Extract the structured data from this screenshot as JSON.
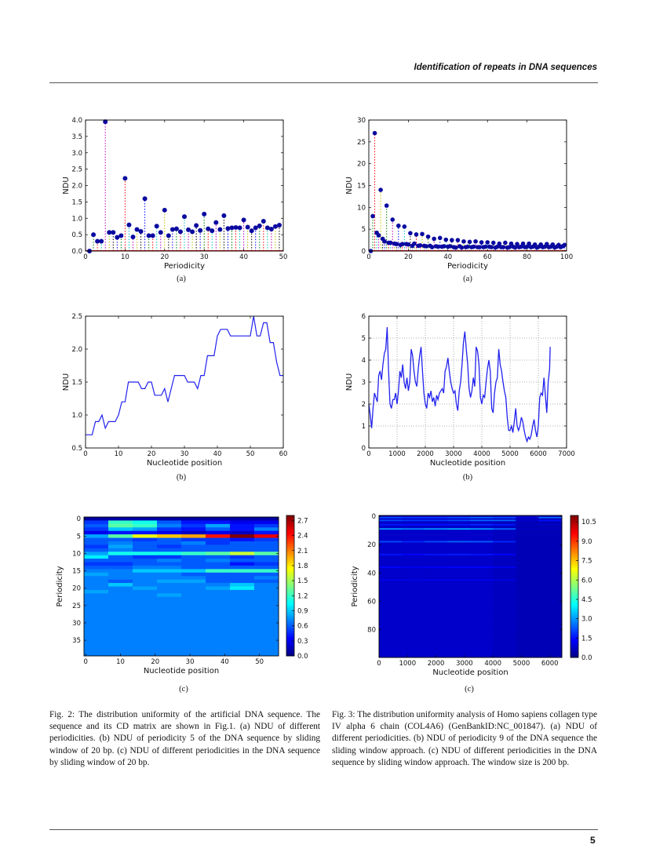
{
  "header": {
    "running_title": "Identification of repeats in DNA sequences",
    "page_number": "5"
  },
  "subfigure_labels": {
    "a": "(a)",
    "b": "(b)",
    "c": "(c)"
  },
  "captions": {
    "fig2": "Fig. 2: The distribution uniformity of the artificial DNA sequence. The sequence and its CD matrix are shown in Fig.1. (a) NDU of different periodicities. (b) NDU of periodicity 5 of the DNA sequence by sliding window of 20 bp. (c) NDU of different periodicities in the DNA sequence by sliding window of 20 bp.",
    "fig3": "Fig. 3: The distribution uniformity analysis of Homo sapiens collagen type IV alpha 6 chain (COL4A6) (GenBankID:NC_001847). (a) NDU of different periodicities. (b) NDU of periodicity 9 of the DNA sequence the sliding window approach. (c) NDU of different periodicities in the DNA sequence by sliding window approach. The window size is 200 bp."
  },
  "colors": {
    "marker": "#0a0aa0",
    "line": "#2222ee",
    "stem_cycle": [
      "#0000ff",
      "#008000",
      "#ff0000",
      "#00bfbf",
      "#bf00bf",
      "#bfbf00",
      "#000000"
    ]
  },
  "chart_data": [
    {
      "id": "fig2a",
      "type": "scatter",
      "style": "stem",
      "xlabel": "Periodicity",
      "ylabel": "NDU",
      "xlim": [
        0,
        50
      ],
      "ylim": [
        0,
        4.0
      ],
      "grid": false,
      "xticks": [
        0,
        10,
        20,
        30,
        40,
        50
      ],
      "xtick_labels": [
        "0",
        "10",
        "20",
        "30",
        "40",
        "50"
      ],
      "yticks": [
        0,
        0.5,
        1,
        1.5,
        2,
        2.5,
        3,
        3.5,
        4
      ],
      "ytick_labels": [
        "0.0",
        "0.5",
        "1.0",
        "1.5",
        "2.0",
        "2.5",
        "3.0",
        "3.5",
        "4.0"
      ],
      "x_start": 1,
      "y": [
        0,
        0.5,
        0.3,
        0.3,
        3.95,
        0.57,
        0.57,
        0.42,
        0.47,
        2.22,
        0.8,
        0.43,
        0.66,
        0.6,
        1.6,
        0.47,
        0.47,
        0.76,
        0.57,
        1.25,
        0.47,
        0.66,
        0.68,
        0.59,
        1.05,
        0.65,
        0.59,
        0.78,
        0.63,
        1.13,
        0.68,
        0.62,
        0.87,
        0.66,
        1.08,
        0.69,
        0.71,
        0.72,
        0.71,
        0.95,
        0.73,
        0.62,
        0.71,
        0.77,
        0.91,
        0.71,
        0.67,
        0.75,
        0.79
      ]
    },
    {
      "id": "fig3a",
      "type": "scatter",
      "style": "stem",
      "xlabel": "Periodicity",
      "ylabel": "NDU",
      "xlim": [
        0,
        100
      ],
      "ylim": [
        0,
        30
      ],
      "grid": false,
      "xticks": [
        0,
        20,
        40,
        60,
        80,
        100
      ],
      "xtick_labels": [
        "0",
        "20",
        "40",
        "60",
        "80",
        "100"
      ],
      "yticks": [
        0,
        5,
        10,
        15,
        20,
        25,
        30
      ],
      "ytick_labels": [
        "0",
        "5",
        "10",
        "15",
        "20",
        "25",
        "30"
      ],
      "x_start": 1,
      "y": [
        0,
        8,
        27,
        4.2,
        3.6,
        14,
        2.8,
        2.2,
        10.4,
        1.9,
        1.9,
        7.2,
        1.7,
        1.6,
        5.8,
        1.4,
        1.6,
        5.6,
        1.6,
        1.5,
        4.1,
        1.2,
        1.7,
        3.8,
        1.2,
        1.3,
        3.9,
        1.2,
        1.1,
        3.3,
        1.2,
        0.9,
        2.8,
        1.1,
        1.0,
        3.0,
        1.0,
        1.1,
        2.6,
        1.0,
        1.1,
        2.5,
        0.9,
        0.8,
        2.5,
        1.1,
        0.8,
        2.2,
        0.9,
        1.0,
        2.1,
        0.9,
        1.0,
        2.2,
        0.9,
        0.9,
        2.0,
        0.9,
        1.0,
        2.0,
        1.0,
        0.9,
        1.9,
        0.8,
        1.0,
        1.7,
        0.9,
        0.9,
        1.9,
        0.8,
        0.9,
        1.7,
        1.0,
        0.8,
        1.6,
        0.9,
        1.0,
        1.7,
        0.9,
        1.0,
        1.7,
        0.9,
        1.0,
        1.5,
        0.8,
        1.0,
        1.5,
        0.9,
        1.0,
        1.6,
        0.9,
        1.0,
        1.5,
        0.8,
        1.0,
        1.4,
        0.9,
        1.1,
        1.4
      ]
    },
    {
      "id": "fig2b",
      "type": "line",
      "xlabel": "Nucleotide position",
      "ylabel": "NDU",
      "xlim": [
        0,
        60
      ],
      "ylim": [
        0.5,
        2.5
      ],
      "grid": false,
      "xticks": [
        0,
        10,
        20,
        30,
        40,
        50,
        60
      ],
      "xtick_labels": [
        "0",
        "10",
        "20",
        "30",
        "40",
        "50",
        "60"
      ],
      "yticks": [
        0.5,
        1,
        1.5,
        2,
        2.5
      ],
      "ytick_labels": [
        "0.5",
        "1.0",
        "1.5",
        "2.0",
        "2.5"
      ],
      "x_start": 0,
      "y": [
        0.7,
        0.7,
        0.7,
        0.9,
        0.9,
        1.0,
        0.8,
        0.9,
        0.9,
        0.9,
        1.0,
        1.2,
        1.2,
        1.5,
        1.5,
        1.5,
        1.5,
        1.4,
        1.4,
        1.5,
        1.5,
        1.3,
        1.3,
        1.3,
        1.4,
        1.2,
        1.4,
        1.6,
        1.6,
        1.6,
        1.6,
        1.5,
        1.5,
        1.5,
        1.4,
        1.6,
        1.6,
        1.9,
        1.9,
        1.9,
        2.2,
        2.3,
        2.3,
        2.3,
        2.2,
        2.2,
        2.2,
        2.2,
        2.2,
        2.2,
        2.2,
        2.5,
        2.2,
        2.2,
        2.4,
        2.4,
        2.1,
        2.1,
        1.8,
        1.6,
        1.6
      ]
    },
    {
      "id": "fig3b",
      "type": "line",
      "xlabel": "Nucleotide position",
      "ylabel": "NDU",
      "xlim": [
        0,
        7000
      ],
      "ylim": [
        0,
        6
      ],
      "grid": true,
      "xticks": [
        0,
        1000,
        2000,
        3000,
        4000,
        5000,
        6000,
        7000
      ],
      "xtick_labels": [
        "0",
        "1000",
        "2000",
        "3000",
        "4000",
        "5000",
        "6000",
        "7000"
      ],
      "yticks": [
        0,
        1,
        2,
        3,
        4,
        5,
        6
      ],
      "ytick_labels": [
        "0",
        "1",
        "2",
        "3",
        "4",
        "5",
        "6"
      ],
      "x": [
        0,
        50,
        100,
        150,
        200,
        250,
        300,
        350,
        400,
        450,
        500,
        550,
        600,
        650,
        700,
        750,
        800,
        850,
        900,
        950,
        1000,
        1050,
        1100,
        1150,
        1200,
        1250,
        1300,
        1350,
        1400,
        1450,
        1500,
        1550,
        1600,
        1650,
        1700,
        1750,
        1800,
        1850,
        1900,
        1950,
        2000,
        2050,
        2100,
        2150,
        2200,
        2250,
        2300,
        2350,
        2400,
        2450,
        2500,
        2550,
        2600,
        2650,
        2700,
        2750,
        2800,
        2850,
        2900,
        2950,
        3000,
        3050,
        3100,
        3150,
        3200,
        3250,
        3300,
        3350,
        3400,
        3450,
        3500,
        3550,
        3600,
        3650,
        3700,
        3750,
        3800,
        3850,
        3900,
        3950,
        4000,
        4050,
        4100,
        4150,
        4200,
        4250,
        4300,
        4350,
        4400,
        4450,
        4500,
        4550,
        4600,
        4650,
        4700,
        4750,
        4800,
        4850,
        4900,
        4950,
        5000,
        5050,
        5100,
        5150,
        5200,
        5250,
        5300,
        5350,
        5400,
        5450,
        5500,
        5550,
        5600,
        5650,
        5700,
        5750,
        5800,
        5850,
        5900,
        5950,
        6000,
        6050,
        6100,
        6150,
        6200,
        6250,
        6300,
        6350,
        6400,
        6420
      ],
      "y": [
        2.0,
        1.5,
        0.9,
        1.8,
        2.5,
        2.3,
        2.1,
        3.3,
        3.5,
        3.1,
        3.8,
        4.3,
        4.5,
        5.5,
        3.5,
        2.0,
        1.8,
        2.2,
        2.2,
        2.5,
        2.0,
        2.6,
        3.5,
        3.2,
        3.8,
        3.0,
        2.7,
        3.2,
        2.6,
        3.0,
        4.5,
        4.2,
        3.5,
        3.0,
        2.8,
        3.6,
        4.2,
        4.6,
        3.5,
        2.5,
        2.0,
        1.8,
        2.5,
        2.3,
        2.6,
        2.1,
        2.3,
        1.9,
        2.4,
        2.2,
        2.5,
        2.6,
        2.7,
        2.5,
        3.5,
        3.7,
        4.1,
        3.5,
        3.0,
        2.7,
        2.5,
        2.6,
        2.0,
        1.7,
        2.6,
        3.0,
        3.8,
        4.8,
        5.3,
        4.5,
        3.8,
        2.7,
        2.3,
        2.6,
        3.2,
        2.8,
        4.6,
        4.4,
        3.8,
        2.3,
        2.0,
        2.4,
        2.3,
        3.0,
        3.6,
        4.0,
        3.5,
        1.8,
        1.6,
        2.5,
        3.0,
        3.2,
        4.5,
        3.8,
        3.5,
        3.0,
        2.6,
        2.3,
        1.4,
        0.8,
        0.8,
        1.0,
        0.7,
        1.2,
        1.8,
        1.0,
        0.8,
        1.0,
        1.4,
        1.2,
        0.8,
        0.5,
        0.3,
        0.5,
        0.4,
        0.6,
        1.0,
        1.3,
        0.8,
        0.5,
        1.0,
        2.3,
        2.5,
        2.4,
        3.2,
        2.4,
        1.6,
        3.0,
        3.6,
        4.6
      ]
    },
    {
      "id": "fig2c",
      "type": "heatmap",
      "colormap": "jet",
      "xlabel": "Nucleotide position",
      "ylabel": "Periodicity",
      "xlim": [
        -0.5,
        55.5
      ],
      "ylim": [
        -0.5,
        39.5
      ],
      "xticks": [
        0,
        10,
        20,
        30,
        40,
        50
      ],
      "xtick_labels": [
        "0",
        "10",
        "20",
        "30",
        "40",
        "50"
      ],
      "yticks": [
        0,
        5,
        10,
        15,
        20,
        25,
        30,
        35
      ],
      "ytick_labels": [
        "0",
        "5",
        "10",
        "15",
        "20",
        "25",
        "30",
        "35"
      ],
      "column_bins": [
        [
          -0.5,
          6.5
        ],
        [
          6.5,
          13.5
        ],
        [
          13.5,
          20.5
        ],
        [
          20.5,
          27.5
        ],
        [
          27.5,
          34.5
        ],
        [
          34.5,
          41.5
        ],
        [
          41.5,
          48.5
        ],
        [
          48.5,
          55.5
        ]
      ],
      "default_row": [
        0.7,
        0.7,
        0.7,
        0.7,
        0.7,
        0.7,
        0.7,
        0.7
      ],
      "rows": {
        "0": [
          0.1,
          0.1,
          0.1,
          0.1,
          0.1,
          0.1,
          0.1,
          0.1
        ],
        "1": [
          0.5,
          1.2,
          1.1,
          0.6,
          0.4,
          0.4,
          0.3,
          0.3
        ],
        "2": [
          0.6,
          1.3,
          1.2,
          0.7,
          0.5,
          0.8,
          0.4,
          0.5
        ],
        "3": [
          0.5,
          0.9,
          0.8,
          0.5,
          0.4,
          0.6,
          0.4,
          0.7
        ],
        "4": [
          0.3,
          0.4,
          0.4,
          0.3,
          0.2,
          0.3,
          0.2,
          0.4
        ],
        "5": [
          0.8,
          1.3,
          1.7,
          1.9,
          2.0,
          2.4,
          2.8,
          2.5
        ],
        "6": [
          0.6,
          0.6,
          0.5,
          0.6,
          0.5,
          0.5,
          0.4,
          0.5
        ],
        "7": [
          0.6,
          0.7,
          0.6,
          0.6,
          0.7,
          0.5,
          0.6,
          0.6
        ],
        "8": [
          0.5,
          0.8,
          0.6,
          0.5,
          0.6,
          0.6,
          0.6,
          0.6
        ],
        "9": [
          0.6,
          0.7,
          0.6,
          0.6,
          0.6,
          0.6,
          0.6,
          0.6
        ],
        "10": [
          0.8,
          1.1,
          1.1,
          1.1,
          1.2,
          1.3,
          1.6,
          1.3
        ],
        "11": [
          1.0,
          0.6,
          0.5,
          0.5,
          0.6,
          0.6,
          0.5,
          0.6
        ],
        "12": [
          0.6,
          0.6,
          0.6,
          0.7,
          0.6,
          0.7,
          0.6,
          0.6
        ],
        "13": [
          0.5,
          0.5,
          0.6,
          0.6,
          0.6,
          0.6,
          0.4,
          0.5
        ],
        "14": [
          0.6,
          0.6,
          0.7,
          0.7,
          0.6,
          0.6,
          0.6,
          0.6
        ],
        "15": [
          0.7,
          0.7,
          0.9,
          0.9,
          0.9,
          1.2,
          1.2,
          1.2
        ],
        "16": [
          0.8,
          0.7,
          0.7,
          0.7,
          0.6,
          0.6,
          0.6,
          0.6
        ],
        "17": [
          0.7,
          0.7,
          0.7,
          0.7,
          0.7,
          0.6,
          0.6,
          0.7
        ],
        "18": [
          0.7,
          0.6,
          0.7,
          0.8,
          0.8,
          0.6,
          0.6,
          0.6
        ],
        "19": [
          0.7,
          0.9,
          0.7,
          0.7,
          0.7,
          0.7,
          0.9,
          0.7
        ],
        "20": [
          0.7,
          0.7,
          0.8,
          0.7,
          0.7,
          0.8,
          1.0,
          0.7
        ],
        "21": [
          0.8,
          0.7,
          0.7,
          0.7,
          0.7,
          0.7,
          0.7,
          0.7
        ],
        "22": [
          0.7,
          0.7,
          0.7,
          0.8,
          0.7,
          0.7,
          0.7,
          0.7
        ]
      },
      "colorbar": {
        "range": [
          0,
          2.8
        ],
        "ticks": [
          0,
          0.3,
          0.6,
          0.9,
          1.2,
          1.5,
          1.8,
          2.1,
          2.4,
          2.7
        ],
        "tick_labels": [
          "0.0",
          "0.3",
          "0.6",
          "0.9",
          "1.2",
          "1.5",
          "1.8",
          "2.1",
          "2.4",
          "2.7"
        ]
      }
    },
    {
      "id": "fig3c",
      "type": "heatmap",
      "colormap": "jet",
      "xlabel": "Nucleotide position",
      "ylabel": "Periodicity",
      "xlim": [
        0,
        6420
      ],
      "ylim": [
        -0.5,
        99.5
      ],
      "xticks": [
        0,
        1000,
        2000,
        3000,
        4000,
        5000,
        6000
      ],
      "xtick_labels": [
        "0",
        "1000",
        "2000",
        "3000",
        "4000",
        "5000",
        "6000"
      ],
      "yticks": [
        0,
        20,
        40,
        60,
        80
      ],
      "ytick_labels": [
        "0",
        "20",
        "40",
        "60",
        "80"
      ],
      "column_bins": [
        [
          0,
          800
        ],
        [
          800,
          1600
        ],
        [
          1600,
          2400
        ],
        [
          2400,
          3200
        ],
        [
          3200,
          4000
        ],
        [
          4000,
          4800
        ],
        [
          4800,
          5600
        ],
        [
          5600,
          6420
        ]
      ],
      "default_row": [
        0.8,
        0.8,
        0.8,
        0.8,
        0.8,
        0.7,
        0.6,
        0.6
      ],
      "rows": {
        "0": [
          0.5,
          0.5,
          0.5,
          0.5,
          0.6,
          0.5,
          0.5,
          0.6
        ],
        "1": [
          2.2,
          2.0,
          2.0,
          2.2,
          2.5,
          2.2,
          1.0,
          2.5
        ],
        "3": [
          2.2,
          2.0,
          2.0,
          2.2,
          2.5,
          2.5,
          0.8,
          1.5
        ],
        "6": [
          1.6,
          1.5,
          1.5,
          1.6,
          1.8,
          1.6,
          0.7,
          0.8
        ],
        "9": [
          3.0,
          2.8,
          3.0,
          3.2,
          3.0,
          2.5,
          0.7,
          0.7
        ],
        "18": [
          2.2,
          1.8,
          2.2,
          2.5,
          2.4,
          1.8,
          0.6,
          0.6
        ],
        "27": [
          1.6,
          1.4,
          1.6,
          1.7,
          1.6,
          1.4,
          0.6,
          0.6
        ],
        "36": [
          1.4,
          1.2,
          1.3,
          1.4,
          1.4,
          1.2,
          0.6,
          0.6
        ],
        "45": [
          1.2,
          1.1,
          1.2,
          1.2,
          1.2,
          1.1,
          0.6,
          0.6
        ]
      },
      "colorbar": {
        "range": [
          0,
          11
        ],
        "ticks": [
          0,
          1.5,
          3,
          4.5,
          6,
          7.5,
          9,
          10.5
        ],
        "tick_labels": [
          "0.0",
          "1.5",
          "3.0",
          "4.5",
          "6.0",
          "7.5",
          "9.0",
          "10.5"
        ]
      }
    }
  ]
}
